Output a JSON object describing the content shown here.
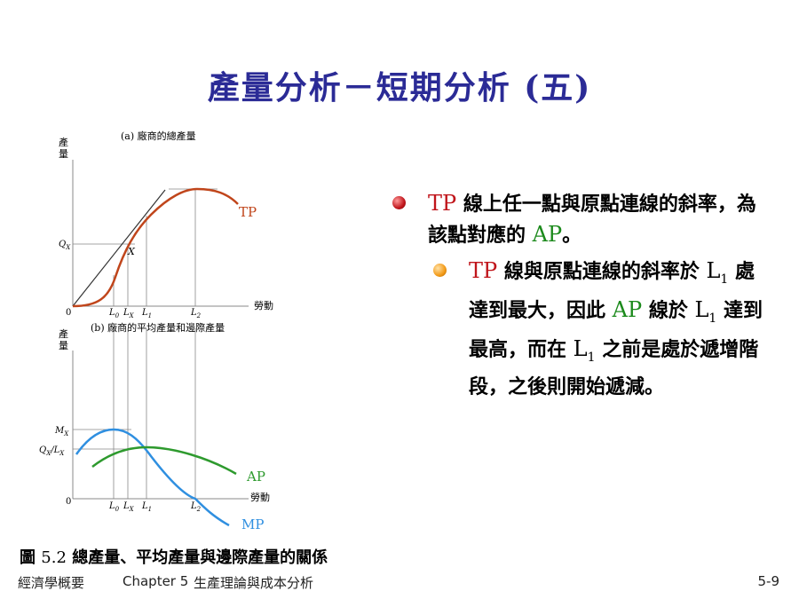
{
  "title": "產量分析－短期分析 (五)",
  "figure": {
    "panel_a": {
      "caption": "(a) 廠商的總產量",
      "y_label": "產量",
      "x_label": "勞動",
      "curve": "TP",
      "point": "X",
      "y_tick": "Q",
      "y_tick_sub": "X",
      "origin": "0",
      "x_ticks": [
        {
          "main": "L",
          "sub": "0"
        },
        {
          "main": "L",
          "sub": "X"
        },
        {
          "main": "L",
          "sub": "1"
        },
        {
          "main": "L",
          "sub": "2"
        }
      ]
    },
    "panel_b": {
      "caption": "(b) 廠商的平均產量和邊際產量",
      "y_label": "產量",
      "x_label": "勞動",
      "curve_ap": "AP",
      "curve_mp": "MP",
      "y_tick_mx_main": "M",
      "y_tick_mx_sub": "X",
      "y_tick_q": "Q",
      "y_tick_q_sub": "X",
      "y_tick_slash": "/",
      "y_tick_l": "L",
      "y_tick_l_sub": "X",
      "origin": "0",
      "x_ticks": [
        {
          "main": "L",
          "sub": "0"
        },
        {
          "main": "L",
          "sub": "X"
        },
        {
          "main": "L",
          "sub": "1"
        },
        {
          "main": "L",
          "sub": "2"
        }
      ]
    },
    "colors": {
      "tp": "#c0451b",
      "ap": "#2e9a2e",
      "mp": "#2f8fe0"
    }
  },
  "bullet1": {
    "tp": "TP",
    "text_a": " 線上任一點與原點連線的斜率，為該點對應的 ",
    "ap": "AP",
    "text_b": "。"
  },
  "bullet2": {
    "tp": "TP",
    "text_a": " 線與原點連線的斜率於 ",
    "l1_main": "L",
    "l1_sub": "1",
    "text_b": " 處達到最大，因此 ",
    "ap": "AP",
    "text_c": " 線於 ",
    "text_d": " 達到最高，而在 ",
    "text_e": " 之前是處於遞增階段，之後則開始遞減。"
  },
  "caption": {
    "prefix": "圖 ",
    "number": "5.2",
    "text": " 總產量、平均產量與邊際產量的關係"
  },
  "footer": {
    "book": "經濟學概要",
    "chapter": "Chapter 5",
    "chapter_title": "生產理論與成本分析",
    "page": "5-9"
  }
}
